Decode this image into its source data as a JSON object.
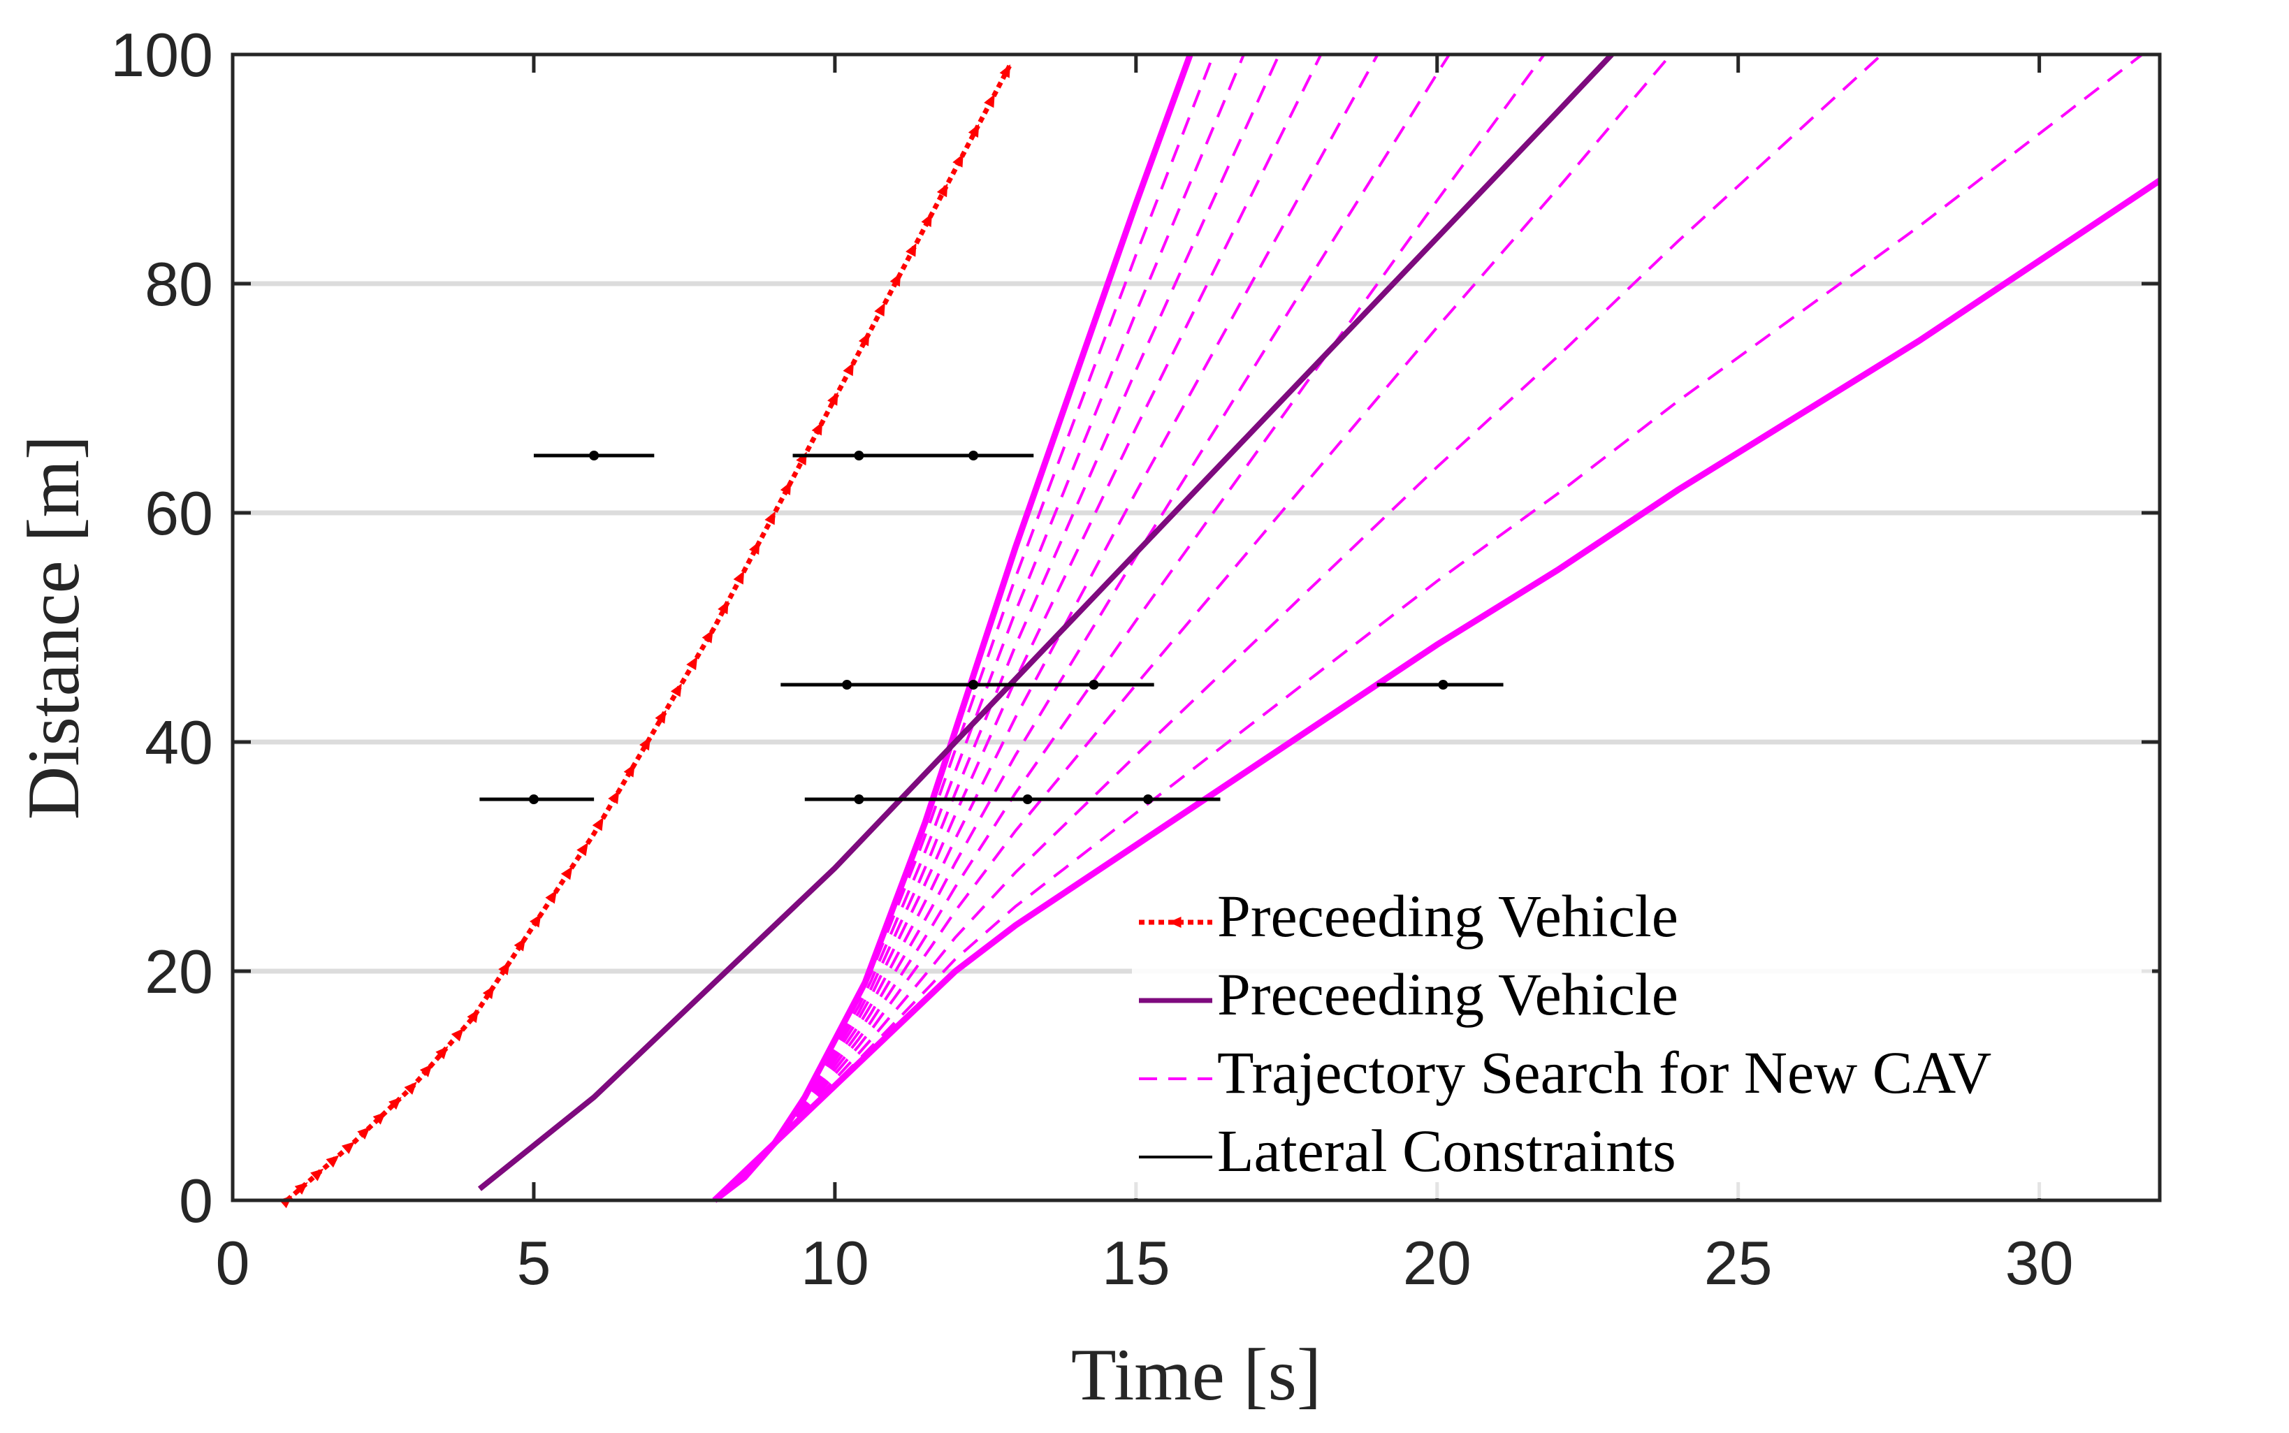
{
  "chart_data": {
    "type": "line",
    "title": "",
    "xlabel": "Time [s]",
    "ylabel": "Distance [m]",
    "xlim": [
      0,
      32
    ],
    "ylim": [
      0,
      100
    ],
    "xticks": [
      0,
      5,
      10,
      15,
      20,
      25,
      30
    ],
    "yticks": [
      0,
      20,
      40,
      60,
      80,
      100
    ],
    "grid": "horizontal",
    "legend_position": "bottom-right",
    "legend": [
      {
        "label": "Preceeding Vehicle",
        "style": "red-dotted-marker"
      },
      {
        "label": "Preceeding Vehicle",
        "style": "purple-solid"
      },
      {
        "label": "Trajectory Search for New CAV",
        "style": "magenta-dashed"
      },
      {
        "label": "Lateral Constraints",
        "style": "black-solid"
      }
    ],
    "colors": {
      "preceding_red": "#ff0000",
      "preceding_purple": "#7e0a7e",
      "search_magenta": "#ff00ff",
      "constraint_black": "#000000",
      "grid": "#dcdcdc"
    },
    "series": [
      {
        "id": "red",
        "x": [
          0.9,
          2.0,
          3.0,
          4.0,
          5.0,
          6.0,
          7.0,
          8.0,
          9.0,
          10.0,
          11.0,
          12.0,
          12.9
        ],
        "y": [
          0,
          5,
          10,
          16,
          24,
          32,
          41,
          50,
          60,
          70,
          80,
          90,
          99
        ]
      },
      {
        "id": "purple",
        "x": [
          4.1,
          6,
          8,
          10,
          12,
          14,
          16,
          18,
          20,
          22,
          22.9
        ],
        "y": [
          1,
          9,
          19,
          29,
          40,
          51,
          62,
          73,
          84,
          95,
          100
        ]
      }
    ],
    "search_family": {
      "start": [
        8.0,
        0
      ],
      "upper_bound": {
        "x": [
          8.0,
          8.5,
          9.0,
          9.5,
          10.0,
          10.5,
          11.0,
          11.5,
          12.0,
          12.5,
          13.0,
          14.0,
          15.0,
          15.9
        ],
        "y": [
          0,
          2,
          5,
          9,
          14,
          19,
          26,
          33,
          41,
          49,
          57,
          72,
          87,
          100
        ]
      },
      "lower_bound": {
        "x": [
          8.0,
          9,
          10,
          11,
          12,
          13,
          14,
          15,
          16,
          17,
          18,
          20,
          22,
          24,
          26,
          28,
          30,
          32
        ],
        "y": [
          0,
          5,
          10,
          15,
          20,
          24,
          27.5,
          31,
          34.5,
          38,
          41.5,
          48.5,
          55,
          62,
          68.5,
          75,
          82,
          89
        ]
      },
      "dashed_blends": [
        0.08,
        0.17,
        0.26,
        0.35,
        0.45,
        0.55,
        0.65,
        0.75,
        0.86,
        0.95
      ]
    },
    "lateral_constraints": [
      {
        "y": 65,
        "x": [
          5.0,
          7.0
        ],
        "markers": [
          6.0
        ]
      },
      {
        "y": 65,
        "x": [
          9.3,
          13.3
        ],
        "markers": [
          10.4,
          12.3
        ]
      },
      {
        "y": 45,
        "x": [
          9.1,
          15.3
        ],
        "markers": [
          10.2,
          12.3,
          14.3
        ]
      },
      {
        "y": 45,
        "x": [
          19.0,
          21.1
        ],
        "markers": [
          20.1
        ]
      },
      {
        "y": 35,
        "x": [
          4.1,
          6.0
        ],
        "markers": [
          5.0
        ]
      },
      {
        "y": 35,
        "x": [
          9.5,
          16.4
        ],
        "markers": [
          10.4,
          13.2,
          15.2
        ]
      }
    ]
  }
}
